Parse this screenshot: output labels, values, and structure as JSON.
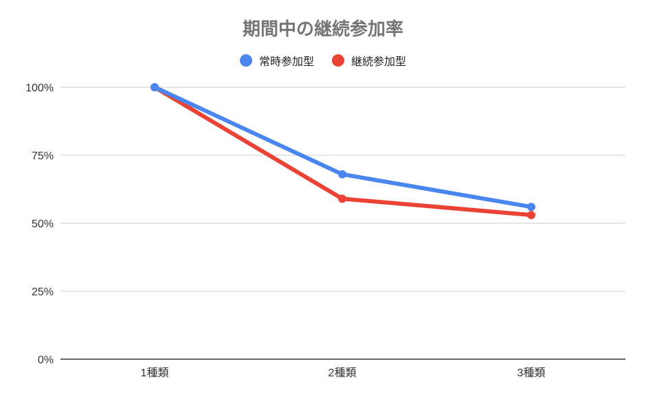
{
  "chart_data": {
    "type": "line",
    "title": "期間中の継続参加率",
    "categories": [
      "1種類",
      "2種類",
      "3種類"
    ],
    "series": [
      {
        "name": "常時参加型",
        "color": "#4a86f0",
        "values": [
          100,
          68,
          56
        ]
      },
      {
        "name": "継続参加型",
        "color": "#ea4335",
        "values": [
          100,
          59,
          53
        ]
      }
    ],
    "y_ticks": [
      "0%",
      "25%",
      "50%",
      "75%",
      "100%"
    ],
    "ylim": [
      0,
      100
    ],
    "grid": true,
    "legend_position": "top"
  }
}
